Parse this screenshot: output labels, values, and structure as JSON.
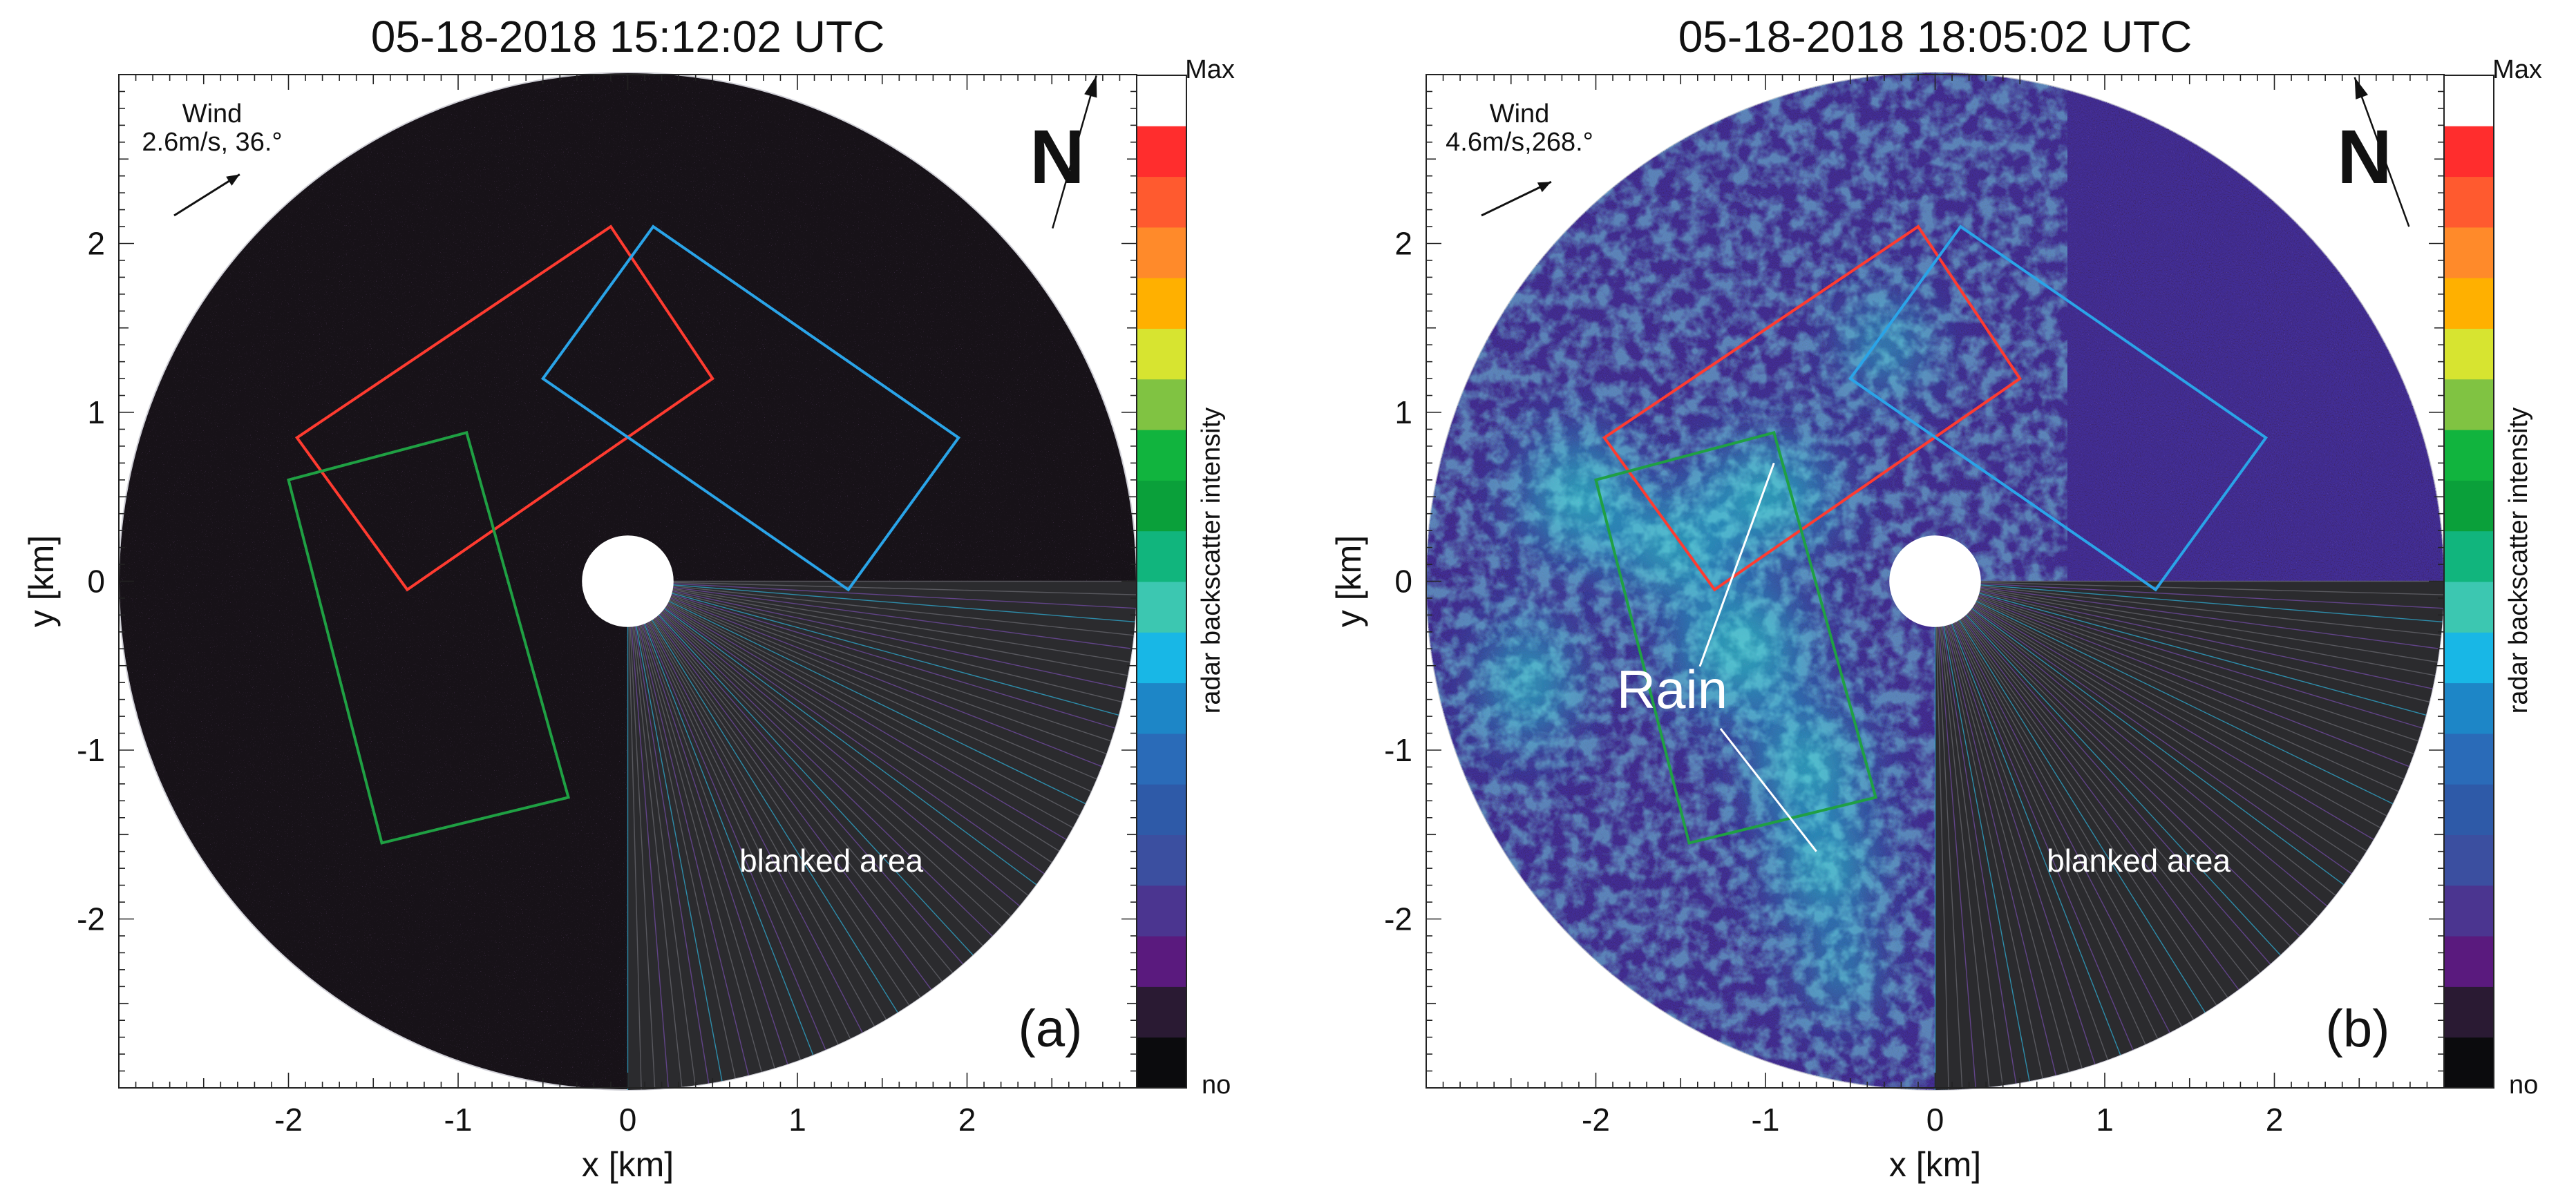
{
  "chart_data": [
    {
      "type": "heatmap",
      "panel_label": "(a)",
      "title": "05-18-2018 15:12:02 UTC",
      "xlabel": "x [km]",
      "ylabel": "y [km]",
      "xlim": [
        -3,
        3
      ],
      "ylim": [
        -3,
        3
      ],
      "x_ticks": [
        -2,
        -1,
        0,
        1,
        2
      ],
      "y_ticks": [
        -2,
        -1,
        0,
        1,
        2
      ],
      "x_tick_labels": [
        "-2",
        "-1",
        "0",
        "1",
        "2"
      ],
      "y_tick_labels": [
        "-2",
        "-1",
        "0",
        "1",
        "2"
      ],
      "grid": false,
      "radar_range_km": 3,
      "wind": {
        "label": "Wind",
        "value": "2.6m/s, 36.°",
        "speed_ms": 2.6,
        "direction_deg": 36
      },
      "north_label": "N",
      "north_arrow_tilt_deg": 196,
      "blanked_area_label": "blanked area",
      "blanked_sector_deg": [
        -90,
        0
      ],
      "echo_level": "low",
      "rectangles": [
        {
          "color": "#ff3b30",
          "corners_km": [
            [
              -1.95,
              0.85
            ],
            [
              -0.1,
              2.1
            ],
            [
              0.5,
              1.2
            ],
            [
              -1.3,
              -0.05
            ]
          ]
        },
        {
          "color": "#2aa4e8",
          "corners_km": [
            [
              -0.5,
              1.2
            ],
            [
              0.15,
              2.1
            ],
            [
              1.95,
              0.85
            ],
            [
              1.3,
              -0.05
            ]
          ]
        },
        {
          "color": "#1fa043",
          "corners_km": [
            [
              -2.0,
              0.6
            ],
            [
              -0.95,
              0.88
            ],
            [
              -0.35,
              -1.28
            ],
            [
              -1.45,
              -1.55
            ]
          ]
        }
      ],
      "annotations": []
    },
    {
      "type": "heatmap",
      "panel_label": "(b)",
      "title": "05-18-2018 18:05:02 UTC",
      "xlabel": "x [km]",
      "ylabel": "y [km]",
      "xlim": [
        -3,
        3
      ],
      "ylim": [
        -3,
        3
      ],
      "x_ticks": [
        -2,
        -1,
        0,
        1,
        2
      ],
      "y_ticks": [
        -2,
        -1,
        0,
        1,
        2
      ],
      "x_tick_labels": [
        "-2",
        "-1",
        "0",
        "1",
        "2"
      ],
      "y_tick_labels": [
        "-2",
        "-1",
        "0",
        "1",
        "2"
      ],
      "grid": false,
      "radar_range_km": 3,
      "wind": {
        "label": "Wind",
        "value": "4.6m/s,268.°",
        "speed_ms": 4.6,
        "direction_deg": 268
      },
      "north_label": "N",
      "north_arrow_tilt_deg": -20,
      "blanked_area_label": "blanked area",
      "blanked_sector_deg": [
        -90,
        0
      ],
      "echo_level": "high",
      "rectangles": [
        {
          "color": "#ff3b30",
          "corners_km": [
            [
              -1.95,
              0.85
            ],
            [
              -0.1,
              2.1
            ],
            [
              0.5,
              1.2
            ],
            [
              -1.3,
              -0.05
            ]
          ]
        },
        {
          "color": "#2aa4e8",
          "corners_km": [
            [
              -0.5,
              1.2
            ],
            [
              0.15,
              2.1
            ],
            [
              1.95,
              0.85
            ],
            [
              1.3,
              -0.05
            ]
          ]
        },
        {
          "color": "#1fa043",
          "corners_km": [
            [
              -2.0,
              0.6
            ],
            [
              -0.95,
              0.88
            ],
            [
              -0.35,
              -1.28
            ],
            [
              -1.45,
              -1.55
            ]
          ]
        }
      ],
      "annotations": [
        {
          "text": "Rain",
          "label_km": [
            -1.55,
            -0.75
          ],
          "points_to_km": [
            [
              -0.95,
              0.7
            ],
            [
              -0.7,
              -1.6
            ]
          ]
        }
      ]
    }
  ],
  "colorbar": {
    "label": "radar backscatter intensity",
    "top_label": "Max",
    "bottom_label": "no",
    "colors": [
      "#0b0b0d",
      "#2a1a33",
      "#5a1a7e",
      "#4b3590",
      "#3b4fa0",
      "#2e5aa8",
      "#2a6bb8",
      "#1d86c7",
      "#18b7e6",
      "#3cc7b1",
      "#11b57d",
      "#0aa03a",
      "#11b43e",
      "#80c342",
      "#d7e430",
      "#ffb000",
      "#ff8a2a",
      "#ff5a2f",
      "#ff2d2d",
      "#ffffff"
    ]
  }
}
